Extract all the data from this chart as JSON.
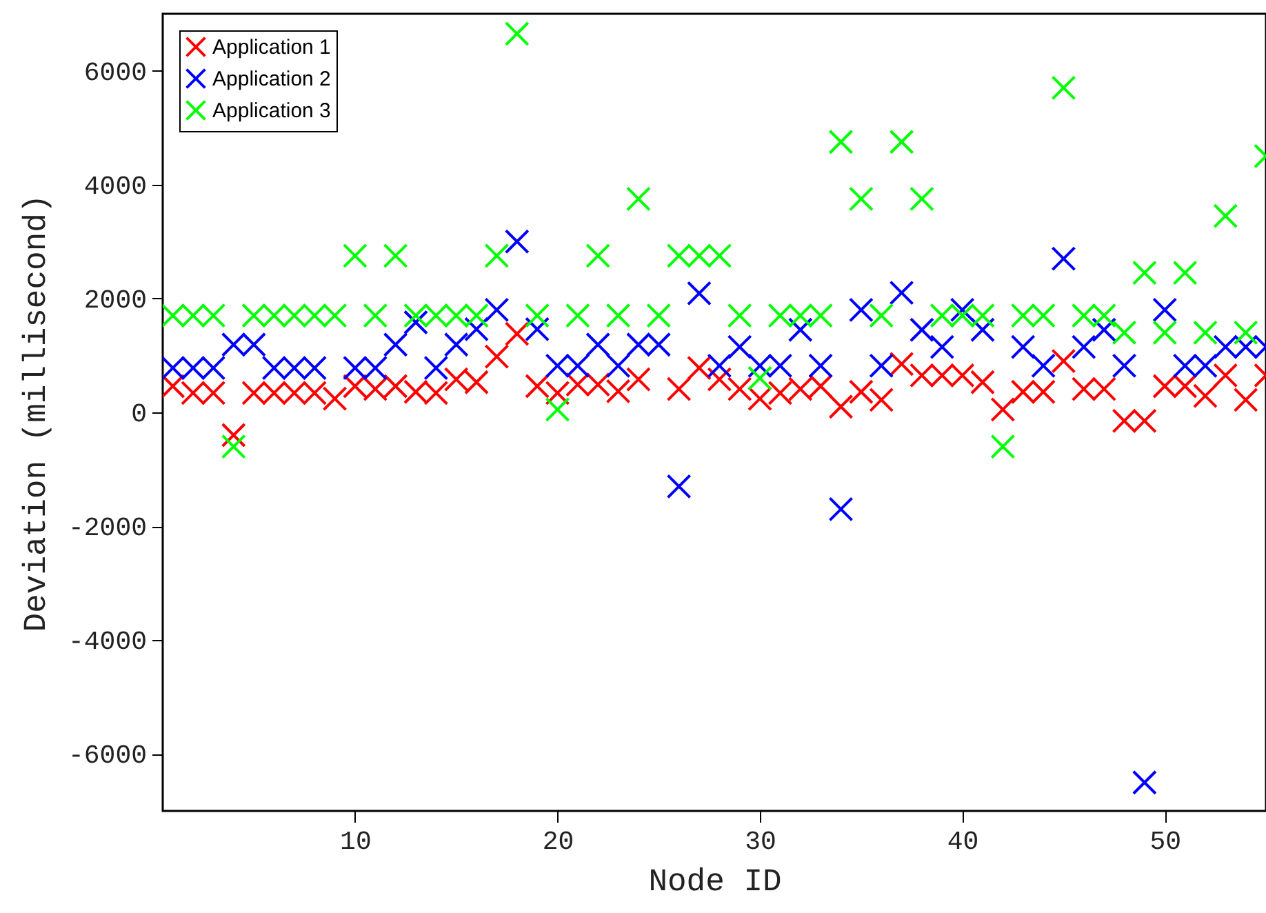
{
  "chart_data": {
    "type": "scatter",
    "xlabel": "Node ID",
    "ylabel": "Deviation (millisecond)",
    "x": [
      1,
      2,
      3,
      4,
      5,
      6,
      7,
      8,
      9,
      10,
      11,
      12,
      13,
      14,
      15,
      16,
      17,
      18,
      19,
      20,
      21,
      22,
      23,
      24,
      25,
      26,
      27,
      28,
      29,
      30,
      31,
      32,
      33,
      34,
      35,
      36,
      37,
      38,
      39,
      40,
      41,
      42,
      43,
      44,
      45,
      46,
      47,
      48,
      49,
      50,
      51,
      52,
      53,
      54,
      55
    ],
    "series": [
      {
        "name": "Application 1",
        "color": "#ff0000",
        "values": [
          460,
          340,
          340,
          -400,
          340,
          340,
          340,
          340,
          240,
          460,
          410,
          460,
          360,
          340,
          580,
          530,
          980,
          1380,
          460,
          340,
          490,
          490,
          370,
          580,
          null,
          410,
          780,
          580,
          410,
          240,
          340,
          410,
          460,
          100,
          360,
          220,
          850,
          650,
          650,
          650,
          530,
          50,
          360,
          360,
          900,
          410,
          410,
          -150,
          -150,
          460,
          460,
          290,
          650,
          220,
          650
        ]
      },
      {
        "name": "Application 2",
        "color": "#0000ff",
        "values": [
          780,
          780,
          780,
          1190,
          1190,
          780,
          780,
          780,
          null,
          780,
          780,
          1190,
          1580,
          780,
          1190,
          1460,
          1800,
          3000,
          1460,
          820,
          820,
          1190,
          820,
          1190,
          1190,
          -1300,
          2090,
          820,
          1150,
          820,
          820,
          1450,
          820,
          -1700,
          1800,
          820,
          2100,
          1450,
          1150,
          1800,
          1450,
          null,
          1150,
          820,
          2700,
          1150,
          1450,
          820,
          -6500,
          1800,
          820,
          820,
          1150,
          1150,
          1150
        ]
      },
      {
        "name": "Application 3",
        "color": "#00ff00",
        "values": [
          1700,
          1700,
          1700,
          -600,
          1700,
          1700,
          1700,
          1700,
          1700,
          2750,
          1700,
          2750,
          1700,
          1700,
          1700,
          1700,
          2750,
          6650,
          1700,
          50,
          1700,
          2750,
          1700,
          3750,
          1700,
          2750,
          2750,
          2750,
          1700,
          600,
          1700,
          1700,
          1700,
          4750,
          3750,
          1700,
          4750,
          3750,
          1700,
          1700,
          1700,
          -600,
          1700,
          1700,
          5700,
          1700,
          1700,
          1400,
          2450,
          1400,
          2450,
          1400,
          3450,
          1400,
          4500
        ]
      }
    ],
    "xlim": [
      0.5,
      55
    ],
    "xticks": [
      10,
      20,
      30,
      40,
      50
    ],
    "ylim": [
      -7000,
      7000
    ],
    "yticks": [
      -6000,
      -4000,
      -2000,
      0,
      2000,
      4000,
      6000
    ],
    "grid": false,
    "legend": "top left",
    "marker": "cross"
  }
}
